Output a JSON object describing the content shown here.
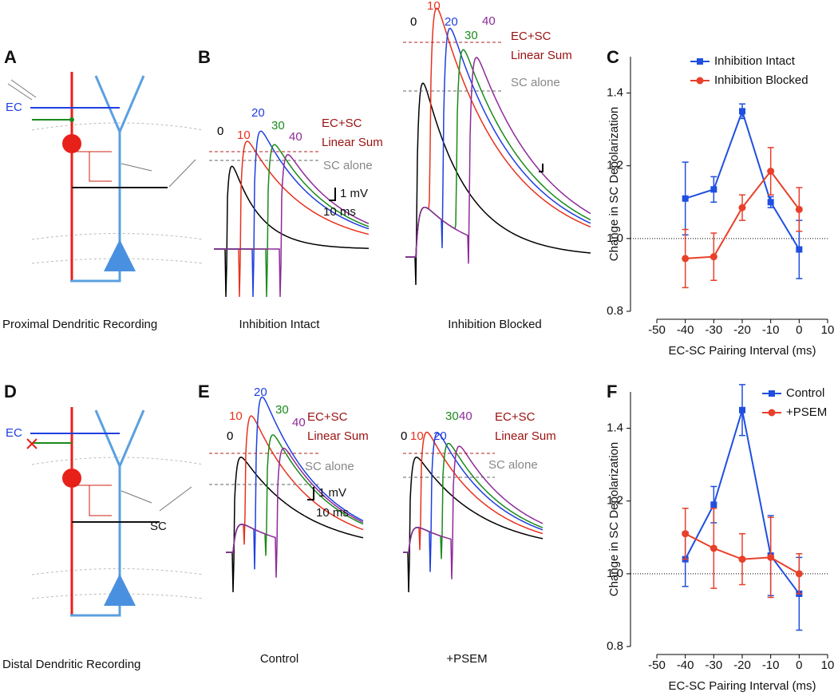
{
  "figure": {
    "panel_labels": [
      "A",
      "B",
      "C",
      "D",
      "E",
      "F"
    ],
    "diagram_a": {
      "ec": "EC",
      "caption": "Proximal Dendritic Recording"
    },
    "diagram_d": {
      "ec": "EC",
      "sc": "SC",
      "caption": "Distal Dendritic Recording"
    },
    "traces": [
      {
        "caption": "Inhibition Intact",
        "delays": [
          "0",
          "10",
          "20",
          "30",
          "40"
        ],
        "sum_label": [
          "EC+SC",
          "Linear Sum"
        ],
        "alone_label": "SC alone",
        "scale": [
          "1 mV",
          "10 ms"
        ]
      },
      {
        "caption": "Inhibition Blocked",
        "delays": [
          "0",
          "10",
          "20",
          "30",
          "40"
        ],
        "sum_label": [
          "EC+SC",
          "Linear Sum"
        ],
        "alone_label": "SC alone"
      },
      {
        "caption": "Control",
        "delays": [
          "0",
          "10",
          "20",
          "30",
          "40"
        ],
        "sum_label": [
          "EC+SC",
          "Linear Sum"
        ],
        "alone_label": "SC alone",
        "scale": [
          "1 mV",
          "10 ms"
        ]
      },
      {
        "caption": "+PSEM",
        "delays": [
          "0",
          "10",
          "20",
          "30",
          "40"
        ],
        "sum_label": [
          "EC+SC",
          "Linear Sum"
        ],
        "alone_label": "SC alone"
      }
    ]
  },
  "chart_data": [
    {
      "type": "line",
      "x_label": "EC-SC Pairing Interval (ms)",
      "y_label": "Change in SC Depolarization",
      "x": [
        -40,
        -30,
        -20,
        -10,
        0
      ],
      "xlim": [
        -50,
        10
      ],
      "xticks": [
        -50,
        -40,
        -30,
        -20,
        -10,
        0,
        10
      ],
      "ylim": [
        0.8,
        1.5
      ],
      "yticks": [
        0.8,
        {
          "value": 1,
          "label": "1.0"
        },
        1.2,
        1.4
      ],
      "reference_line": 1,
      "legend": "top",
      "series": [
        {
          "name": "Inhibition Intact",
          "color": "#1f4fe0",
          "marker": "square",
          "values": [
            1.11,
            1.135,
            1.35,
            1.1,
            0.97
          ],
          "errors": [
            0.1,
            0.035,
            0.02,
            0.015,
            0.08
          ]
        },
        {
          "name": "Inhibition Blocked",
          "color": "#e8402a",
          "marker": "circle",
          "values": [
            0.945,
            0.95,
            1.085,
            1.185,
            1.08
          ],
          "errors": [
            0.08,
            0.065,
            0.035,
            0.065,
            0.06
          ]
        }
      ]
    },
    {
      "type": "line",
      "x_label": "EC-SC Pairing Interval (ms)",
      "y_label": "Change in SC Depolarization",
      "x": [
        -40,
        -30,
        -20,
        -10,
        0
      ],
      "xlim": [
        -50,
        10
      ],
      "xticks": [
        -50,
        -40,
        -30,
        -20,
        -10,
        0,
        10
      ],
      "ylim": [
        0.8,
        1.5
      ],
      "yticks": [
        0.8,
        {
          "value": 1,
          "label": "1.0"
        },
        1.2,
        1.4
      ],
      "reference_line": 1,
      "legend": "top-right",
      "series": [
        {
          "name": "Control",
          "color": "#1f4fe0",
          "marker": "square",
          "values": [
            1.04,
            1.19,
            1.45,
            1.05,
            0.945
          ],
          "errors": [
            0.075,
            0.05,
            0.07,
            0.11,
            0.1
          ]
        },
        {
          "name": "+PSEM",
          "color": "#e8402a",
          "marker": "circle",
          "values": [
            1.11,
            1.07,
            1.04,
            1.045,
            1.0
          ],
          "errors": [
            0.07,
            0.11,
            0.07,
            0.11,
            0.055
          ]
        }
      ]
    }
  ]
}
